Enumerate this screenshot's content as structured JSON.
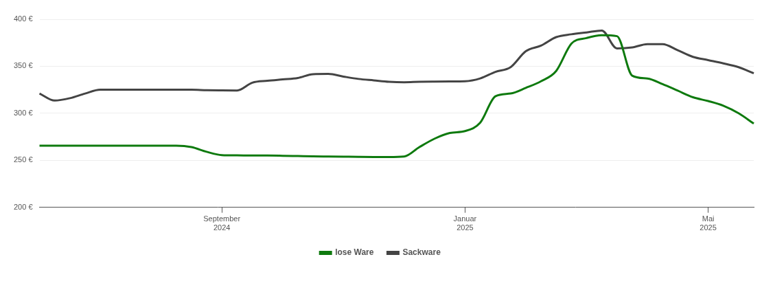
{
  "chart_data": {
    "type": "line",
    "categories": [
      null,
      null,
      null,
      null,
      null,
      null,
      null,
      null,
      null,
      null,
      null,
      null,
      "September 2024",
      null,
      null,
      null,
      null,
      null,
      null,
      null,
      null,
      null,
      null,
      null,
      null,
      null,
      null,
      null,
      "Januar 2025",
      null,
      null,
      null,
      null,
      null,
      null,
      null,
      null,
      null,
      null,
      null,
      null,
      null,
      null,
      null,
      "Mai 2025",
      null,
      null,
      null
    ],
    "series": [
      {
        "name": "lose Ware",
        "color": "#0e7a0e",
        "values": [
          265.5,
          265.5,
          265.5,
          265.5,
          265.5,
          265.5,
          265.5,
          265.5,
          265.5,
          265.5,
          264,
          259,
          255.5,
          255.2,
          255,
          255,
          254.8,
          254.5,
          254.2,
          254,
          253.8,
          253.6,
          253.5,
          253.5,
          254,
          264,
          273,
          279,
          281,
          290,
          318,
          321,
          327,
          334,
          345,
          374,
          380,
          383,
          382,
          340,
          337,
          331,
          324,
          317,
          313,
          308,
          300,
          289
        ]
      },
      {
        "name": "Sackware",
        "color": "#444444",
        "values": [
          321,
          313.5,
          316,
          321,
          325,
          325,
          325,
          325,
          325,
          325,
          325,
          324.5,
          324.3,
          324.2,
          332.5,
          334.5,
          336,
          337.5,
          341.5,
          341.8,
          339,
          336.5,
          335,
          333.5,
          333,
          333.5,
          333.7,
          333.8,
          334,
          337,
          344,
          349,
          366,
          372,
          381,
          384,
          386,
          388,
          369,
          370,
          373.5,
          373.5,
          367,
          360,
          356.5,
          353,
          349,
          342.5
        ]
      }
    ],
    "ylim": [
      200,
      400
    ],
    "yticks": [
      {
        "value": 200,
        "label": "200 €"
      },
      {
        "value": 250,
        "label": "250 €"
      },
      {
        "value": 300,
        "label": "300 €"
      },
      {
        "value": 350,
        "label": "350 €"
      },
      {
        "value": 400,
        "label": "400 €"
      }
    ],
    "grid": true,
    "legend": "bottom"
  }
}
